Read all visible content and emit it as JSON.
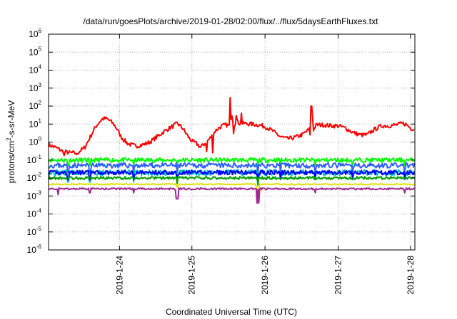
{
  "chart_data": {
    "type": "line",
    "title": "/data/run/goesPlots/archive/2019-01-28/02:00/flux/../flux/5daysEarthFluxes.txt",
    "xlabel": "Coordinated Universal Time (UTC)",
    "ylabel_parts": [
      "protons/cm",
      "2",
      "-s-sr-MeV"
    ],
    "y_scale": "log",
    "ylim": [
      1e-06,
      1000000.0
    ],
    "xlim": [
      0,
      5.06
    ],
    "grid": true,
    "y_ticks": [
      {
        "base": "10",
        "exp": "-6",
        "value": -6
      },
      {
        "base": "10",
        "exp": "-5",
        "value": -5
      },
      {
        "base": "10",
        "exp": "-4",
        "value": -4
      },
      {
        "base": "10",
        "exp": "-3",
        "value": -3
      },
      {
        "base": "10",
        "exp": "-2",
        "value": -2
      },
      {
        "base": "10",
        "exp": "-1",
        "value": -1
      },
      {
        "base": "10",
        "exp": "0",
        "value": 0
      },
      {
        "base": "10",
        "exp": "1",
        "value": 1
      },
      {
        "base": "10",
        "exp": "2",
        "value": 2
      },
      {
        "base": "10",
        "exp": "3",
        "value": 3
      },
      {
        "base": "10",
        "exp": "4",
        "value": 4
      },
      {
        "base": "10",
        "exp": "5",
        "value": 5
      },
      {
        "base": "10",
        "exp": "6",
        "value": 6
      }
    ],
    "x_ticks": [
      {
        "label": "2019-1-24",
        "day": 0.98
      },
      {
        "label": "2019-1-25",
        "day": 1.98
      },
      {
        "label": "2019-1-26",
        "day": 2.99
      },
      {
        "label": "2019-1-27",
        "day": 4.0
      },
      {
        "label": "2019-1-28",
        "day": 5.0
      }
    ],
    "series": [
      {
        "color": "#ff0000",
        "base": [
          [
            0.0,
            0.7
          ],
          [
            0.1,
            0.5
          ],
          [
            0.2,
            0.3
          ],
          [
            0.3,
            0.25
          ],
          [
            0.4,
            0.25
          ],
          [
            0.5,
            0.5
          ],
          [
            0.55,
            1.2
          ],
          [
            0.6,
            3.0
          ],
          [
            0.65,
            7.0
          ],
          [
            0.7,
            13
          ],
          [
            0.75,
            20
          ],
          [
            0.8,
            20
          ],
          [
            0.85,
            15
          ],
          [
            0.9,
            10
          ],
          [
            0.95,
            5
          ],
          [
            1.0,
            2.0
          ],
          [
            1.05,
            1.2
          ],
          [
            1.1,
            0.8
          ],
          [
            1.2,
            0.6
          ],
          [
            1.3,
            0.7
          ],
          [
            1.4,
            1.0
          ],
          [
            1.5,
            2.0
          ],
          [
            1.6,
            4.0
          ],
          [
            1.7,
            7.0
          ],
          [
            1.78,
            11
          ],
          [
            1.85,
            6
          ],
          [
            1.9,
            3.0
          ],
          [
            1.95,
            1.5
          ],
          [
            2.0,
            1.0
          ],
          [
            2.05,
            0.8
          ],
          [
            2.1,
            0.5
          ],
          [
            2.18,
            1.0
          ],
          [
            2.25,
            2.0
          ],
          [
            2.3,
            4.0
          ],
          [
            2.35,
            6.0
          ],
          [
            2.4,
            8.0
          ],
          [
            2.45,
            9.0
          ],
          [
            2.5,
            8.0
          ],
          [
            2.53,
            40
          ],
          [
            2.56,
            9
          ],
          [
            2.6,
            15
          ],
          [
            2.65,
            10
          ],
          [
            2.7,
            11
          ],
          [
            2.8,
            10
          ],
          [
            2.9,
            9
          ],
          [
            3.0,
            7
          ],
          [
            3.1,
            4.0
          ],
          [
            3.2,
            2.0
          ],
          [
            3.3,
            1.5
          ],
          [
            3.4,
            1.8
          ],
          [
            3.5,
            2.5
          ],
          [
            3.6,
            5.0
          ],
          [
            3.62,
            6.0
          ],
          [
            3.66,
            5.0
          ],
          [
            3.7,
            9
          ],
          [
            3.8,
            9
          ],
          [
            3.9,
            8
          ],
          [
            4.0,
            8
          ],
          [
            4.1,
            6
          ],
          [
            4.2,
            3.5
          ],
          [
            4.3,
            2.5
          ],
          [
            4.4,
            2.5
          ],
          [
            4.5,
            5
          ],
          [
            4.6,
            8
          ],
          [
            4.7,
            8
          ],
          [
            4.8,
            9
          ],
          [
            4.9,
            11
          ],
          [
            4.95,
            9
          ],
          [
            5.0,
            6
          ],
          [
            5.06,
            5
          ]
        ],
        "spikes": [
          [
            0.22,
            0.18
          ],
          [
            0.38,
            0.2
          ],
          [
            2.18,
            0.3
          ],
          [
            2.27,
            0.25
          ],
          [
            2.51,
            300
          ],
          [
            2.56,
            3
          ],
          [
            2.59,
            30
          ],
          [
            2.62,
            15
          ],
          [
            2.66,
            40
          ],
          [
            3.61,
            2.5
          ],
          [
            3.63,
            100
          ],
          [
            3.65,
            20
          ]
        ],
        "jitter": 0.12,
        "step": 0.012,
        "seed": 7
      },
      {
        "color": "#00ff00",
        "level": 0.1,
        "jitter": 0.12,
        "dips": [
          [
            0.27,
            0.05
          ],
          [
            0.57,
            0.05
          ],
          [
            1.18,
            0.05
          ],
          [
            1.78,
            0.05
          ],
          [
            2.89,
            0.04
          ],
          [
            3.2,
            0.05
          ],
          [
            3.68,
            0.05
          ],
          [
            4.2,
            0.05
          ],
          [
            4.92,
            0.05
          ]
        ],
        "step": 0.012,
        "seed": 11
      },
      {
        "color": "#3060ff",
        "level": 0.05,
        "jitter": 0.14,
        "dips": [
          [
            0.27,
            0.02
          ],
          [
            0.57,
            0.02
          ],
          [
            1.18,
            0.02
          ],
          [
            1.78,
            0.02
          ],
          [
            2.89,
            0.02
          ],
          [
            3.2,
            0.02
          ],
          [
            3.68,
            0.02
          ],
          [
            4.2,
            0.02
          ],
          [
            4.92,
            0.02
          ]
        ],
        "step": 0.012,
        "seed": 23
      },
      {
        "color": "#00c0c0",
        "level": 0.02,
        "jitter": 0.16,
        "dips": [
          [
            0.27,
            0.006
          ],
          [
            0.57,
            0.006
          ],
          [
            1.18,
            0.006
          ],
          [
            1.78,
            0.006
          ],
          [
            2.89,
            0.005
          ],
          [
            3.2,
            0.008
          ],
          [
            3.68,
            0.008
          ],
          [
            4.2,
            0.008
          ],
          [
            4.92,
            0.008
          ]
        ],
        "step": 0.012,
        "seed": 31
      },
      {
        "color": "#0000ff",
        "level": 0.02,
        "jitter": 0.12,
        "dips": [
          [
            0.27,
            0.008
          ],
          [
            0.57,
            0.008
          ],
          [
            1.18,
            0.008
          ],
          [
            1.78,
            0.008
          ],
          [
            2.89,
            0.006
          ],
          [
            3.2,
            0.009
          ],
          [
            3.68,
            0.009
          ],
          [
            4.2,
            0.009
          ],
          [
            4.92,
            0.009
          ]
        ],
        "step": 0.012,
        "seed": 41
      },
      {
        "color": "#00a000",
        "level": 0.01,
        "jitter": 0.08,
        "dips": [
          [
            1.78,
            0.005
          ],
          [
            2.89,
            0.004
          ]
        ],
        "step": 0.012,
        "seed": 53
      },
      {
        "color": "#e0e000",
        "level": 0.0045,
        "jitter": 0.03,
        "dips": [
          [
            1.78,
            0.003
          ],
          [
            2.89,
            0.002
          ]
        ],
        "step": 0.02,
        "seed": 61
      },
      {
        "color": "#a02890",
        "level": 0.0025,
        "jitter": 0.05,
        "dips": [
          [
            0.13,
            0.0012
          ],
          [
            0.57,
            0.0015
          ],
          [
            1.18,
            0.0015
          ],
          [
            1.77,
            0.0007
          ],
          [
            1.79,
            0.0007
          ],
          [
            2.88,
            0.0004
          ],
          [
            2.9,
            0.0004
          ],
          [
            3.68,
            0.0015
          ],
          [
            4.92,
            0.0015
          ]
        ],
        "step": 0.012,
        "seed": 71
      }
    ]
  }
}
